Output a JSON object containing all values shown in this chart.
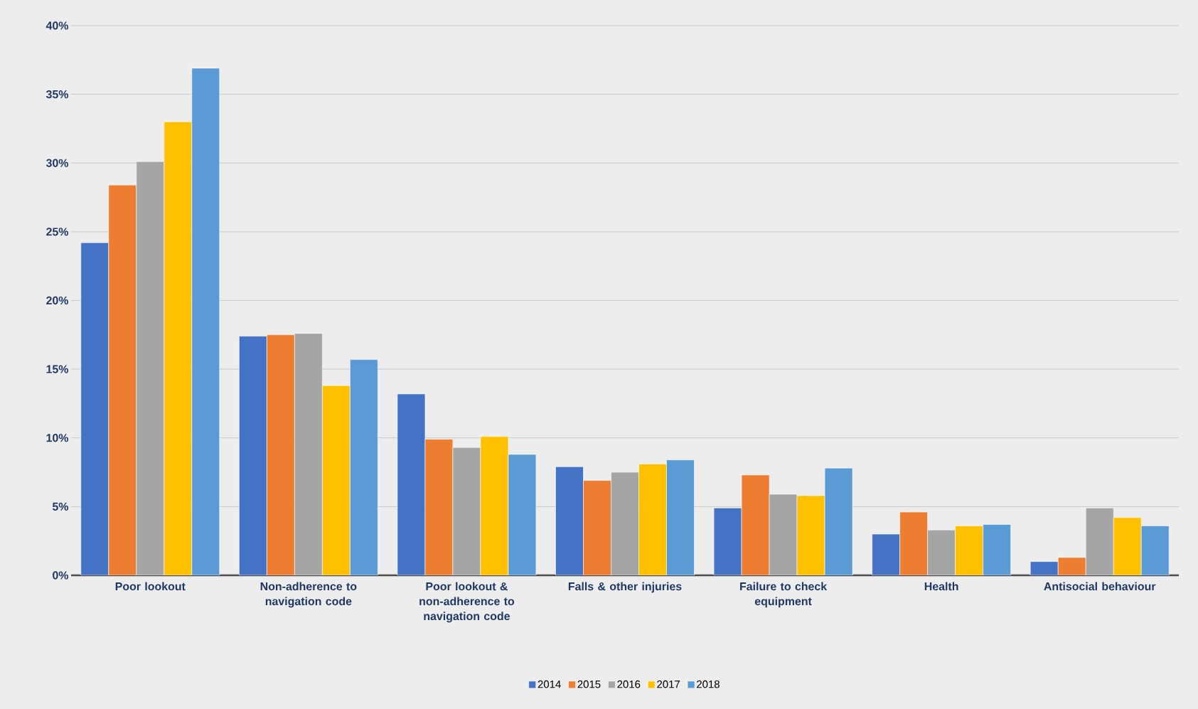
{
  "chart_data": {
    "type": "bar",
    "categories": [
      "Poor lookout",
      "Non-adherence to navigation code",
      "Poor lookout & non-adherence to navigation code",
      "Falls & other injuries",
      "Failure to check equipment",
      "Health",
      "Antisocial behaviour"
    ],
    "series": [
      {
        "name": "2014",
        "color": "#4472c4",
        "values": [
          24.2,
          17.4,
          13.2,
          7.9,
          4.9,
          3.0,
          1.0
        ]
      },
      {
        "name": "2015",
        "color": "#ed7d31",
        "values": [
          28.4,
          17.5,
          9.9,
          6.9,
          7.3,
          4.6,
          1.3
        ]
      },
      {
        "name": "2016",
        "color": "#a5a5a5",
        "values": [
          30.1,
          17.6,
          9.3,
          7.5,
          5.9,
          3.3,
          4.9
        ]
      },
      {
        "name": "2017",
        "color": "#ffc000",
        "values": [
          33.0,
          13.8,
          10.1,
          8.1,
          5.8,
          3.6,
          4.2
        ]
      },
      {
        "name": "2018",
        "color": "#5b9bd5",
        "values": [
          36.9,
          15.7,
          8.8,
          8.4,
          7.8,
          3.7,
          3.6
        ]
      }
    ],
    "ylim": [
      0,
      40
    ],
    "yticks": [
      {
        "value": 0,
        "label": "0%"
      },
      {
        "value": 5,
        "label": "5%"
      },
      {
        "value": 10,
        "label": "10%"
      },
      {
        "value": 15,
        "label": "15%"
      },
      {
        "value": 20,
        "label": "20%"
      },
      {
        "value": 25,
        "label": "25%"
      },
      {
        "value": 30,
        "label": "30%"
      },
      {
        "value": 35,
        "label": "35%"
      },
      {
        "value": 40,
        "label": "40%"
      }
    ],
    "grid": "y",
    "legend": "bottom"
  }
}
